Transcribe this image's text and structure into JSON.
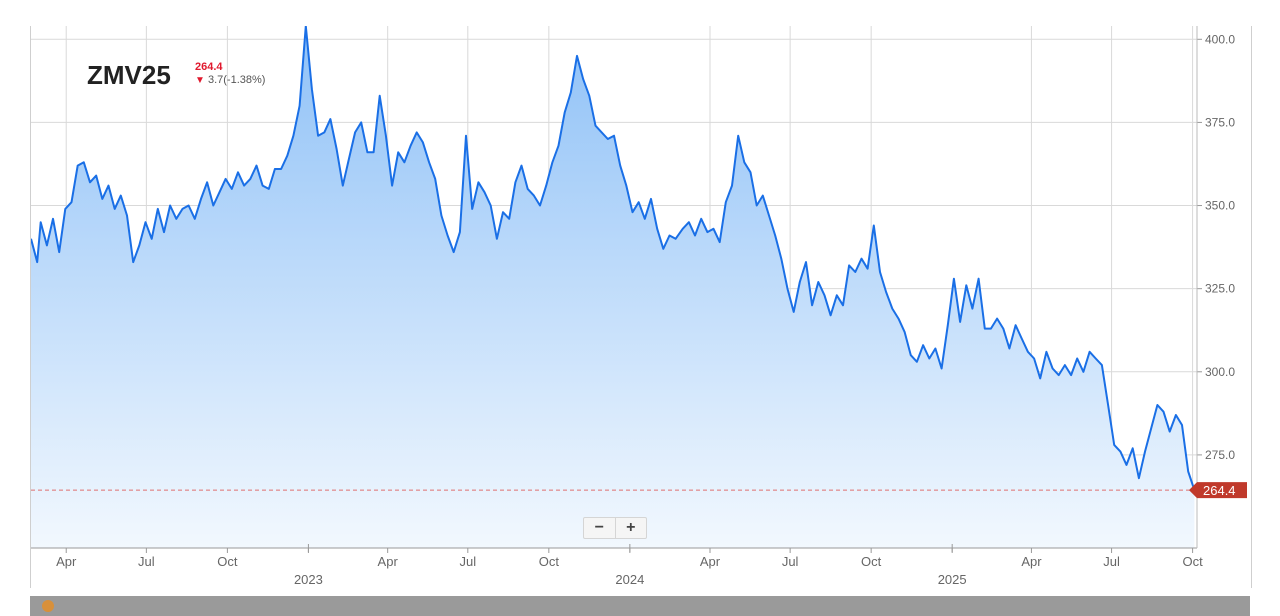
{
  "header": {
    "symbol": "ZMV25",
    "last": "264.4",
    "change": "3.7(-1.38%)",
    "direction_icon": "down-arrow-icon"
  },
  "zoom": {
    "minus": "−",
    "plus": "+"
  },
  "chart_data": {
    "type": "area",
    "title": "ZMV25",
    "xlabel": "",
    "ylabel": "",
    "last_value": 264.4,
    "last_value_label": "264.4",
    "ylim": [
      247,
      404
    ],
    "xlim": [
      "2022-02-20",
      "2025-10-06"
    ],
    "y_ticks": [
      400.0,
      375.0,
      350.0,
      325.0,
      300.0,
      275.0
    ],
    "y_tick_labels": [
      "400.0",
      "375.0",
      "350.0",
      "325.0",
      "300.0",
      "275.0"
    ],
    "x_ticks": [
      {
        "date": "2022-04-01",
        "label": "Apr"
      },
      {
        "date": "2022-07-01",
        "label": "Jul"
      },
      {
        "date": "2022-10-01",
        "label": "Oct"
      },
      {
        "date": "2023-01-01",
        "label": "2023",
        "year": true
      },
      {
        "date": "2023-04-01",
        "label": "Apr"
      },
      {
        "date": "2023-07-01",
        "label": "Jul"
      },
      {
        "date": "2023-10-01",
        "label": "Oct"
      },
      {
        "date": "2024-01-01",
        "label": "2024",
        "year": true
      },
      {
        "date": "2024-04-01",
        "label": "Apr"
      },
      {
        "date": "2024-07-01",
        "label": "Jul"
      },
      {
        "date": "2024-10-01",
        "label": "Oct"
      },
      {
        "date": "2025-01-01",
        "label": "2025",
        "year": true
      },
      {
        "date": "2025-04-01",
        "label": "Apr"
      },
      {
        "date": "2025-07-01",
        "label": "Jul"
      },
      {
        "date": "2025-10-01",
        "label": "Oct"
      }
    ],
    "grid": true,
    "colors": {
      "line": "#1a6fe6",
      "fill_top": "#8fc1f7",
      "fill_bottom": "#f2f8fe",
      "last_marker": "#c0392b",
      "last_line": "#e07070",
      "grid": "#d9d9d9"
    },
    "series": [
      {
        "points": [
          [
            "2022-02-20",
            340
          ],
          [
            "2022-02-27",
            333
          ],
          [
            "2022-03-03",
            345
          ],
          [
            "2022-03-10",
            338
          ],
          [
            "2022-03-17",
            346
          ],
          [
            "2022-03-24",
            336
          ],
          [
            "2022-03-31",
            349
          ],
          [
            "2022-04-07",
            351
          ],
          [
            "2022-04-14",
            362
          ],
          [
            "2022-04-21",
            363
          ],
          [
            "2022-04-28",
            357
          ],
          [
            "2022-05-05",
            359
          ],
          [
            "2022-05-12",
            352
          ],
          [
            "2022-05-19",
            356
          ],
          [
            "2022-05-26",
            349
          ],
          [
            "2022-06-02",
            353
          ],
          [
            "2022-06-09",
            347
          ],
          [
            "2022-06-16",
            333
          ],
          [
            "2022-06-23",
            338
          ],
          [
            "2022-06-30",
            345
          ],
          [
            "2022-07-07",
            340
          ],
          [
            "2022-07-14",
            349
          ],
          [
            "2022-07-21",
            342
          ],
          [
            "2022-07-28",
            350
          ],
          [
            "2022-08-04",
            346
          ],
          [
            "2022-08-11",
            349
          ],
          [
            "2022-08-18",
            350
          ],
          [
            "2022-08-25",
            346
          ],
          [
            "2022-09-01",
            352
          ],
          [
            "2022-09-08",
            357
          ],
          [
            "2022-09-15",
            350
          ],
          [
            "2022-09-22",
            354
          ],
          [
            "2022-09-29",
            358
          ],
          [
            "2022-10-06",
            355
          ],
          [
            "2022-10-13",
            360
          ],
          [
            "2022-10-20",
            356
          ],
          [
            "2022-10-27",
            358
          ],
          [
            "2022-11-03",
            362
          ],
          [
            "2022-11-10",
            356
          ],
          [
            "2022-11-17",
            355
          ],
          [
            "2022-11-24",
            361
          ],
          [
            "2022-12-01",
            361
          ],
          [
            "2022-12-08",
            365
          ],
          [
            "2022-12-15",
            371
          ],
          [
            "2022-12-22",
            380
          ],
          [
            "2022-12-29",
            404
          ],
          [
            "2023-01-05",
            385
          ],
          [
            "2023-01-12",
            371
          ],
          [
            "2023-01-19",
            372
          ],
          [
            "2023-01-26",
            376
          ],
          [
            "2023-02-02",
            367
          ],
          [
            "2023-02-09",
            356
          ],
          [
            "2023-02-16",
            364
          ],
          [
            "2023-02-23",
            372
          ],
          [
            "2023-03-02",
            375
          ],
          [
            "2023-03-09",
            366
          ],
          [
            "2023-03-16",
            366
          ],
          [
            "2023-03-23",
            383
          ],
          [
            "2023-03-30",
            371
          ],
          [
            "2023-04-06",
            356
          ],
          [
            "2023-04-13",
            366
          ],
          [
            "2023-04-20",
            363
          ],
          [
            "2023-04-27",
            368
          ],
          [
            "2023-05-04",
            372
          ],
          [
            "2023-05-11",
            369
          ],
          [
            "2023-05-18",
            363
          ],
          [
            "2023-05-25",
            358
          ],
          [
            "2023-06-01",
            347
          ],
          [
            "2023-06-08",
            341
          ],
          [
            "2023-06-15",
            336
          ],
          [
            "2023-06-22",
            342
          ],
          [
            "2023-06-29",
            371
          ],
          [
            "2023-07-06",
            349
          ],
          [
            "2023-07-13",
            357
          ],
          [
            "2023-07-20",
            354
          ],
          [
            "2023-07-27",
            350
          ],
          [
            "2023-08-03",
            340
          ],
          [
            "2023-08-10",
            348
          ],
          [
            "2023-08-17",
            346
          ],
          [
            "2023-08-24",
            357
          ],
          [
            "2023-08-31",
            362
          ],
          [
            "2023-09-07",
            355
          ],
          [
            "2023-09-14",
            353
          ],
          [
            "2023-09-21",
            350
          ],
          [
            "2023-09-28",
            356
          ],
          [
            "2023-10-05",
            363
          ],
          [
            "2023-10-12",
            368
          ],
          [
            "2023-10-19",
            378
          ],
          [
            "2023-10-26",
            384
          ],
          [
            "2023-11-02",
            395
          ],
          [
            "2023-11-09",
            388
          ],
          [
            "2023-11-16",
            383
          ],
          [
            "2023-11-23",
            374
          ],
          [
            "2023-11-30",
            372
          ],
          [
            "2023-12-07",
            370
          ],
          [
            "2023-12-14",
            371
          ],
          [
            "2023-12-21",
            362
          ],
          [
            "2023-12-28",
            356
          ],
          [
            "2024-01-04",
            348
          ],
          [
            "2024-01-11",
            351
          ],
          [
            "2024-01-18",
            346
          ],
          [
            "2024-01-25",
            352
          ],
          [
            "2024-02-01",
            343
          ],
          [
            "2024-02-08",
            337
          ],
          [
            "2024-02-15",
            341
          ],
          [
            "2024-02-22",
            340
          ],
          [
            "2024-03-01",
            343
          ],
          [
            "2024-03-08",
            345
          ],
          [
            "2024-03-15",
            341
          ],
          [
            "2024-03-22",
            346
          ],
          [
            "2024-03-29",
            342
          ],
          [
            "2024-04-05",
            343
          ],
          [
            "2024-04-12",
            339
          ],
          [
            "2024-04-19",
            351
          ],
          [
            "2024-04-26",
            356
          ],
          [
            "2024-05-03",
            371
          ],
          [
            "2024-05-10",
            363
          ],
          [
            "2024-05-17",
            360
          ],
          [
            "2024-05-24",
            350
          ],
          [
            "2024-05-31",
            353
          ],
          [
            "2024-06-07",
            347
          ],
          [
            "2024-06-14",
            341
          ],
          [
            "2024-06-21",
            334
          ],
          [
            "2024-06-28",
            325
          ],
          [
            "2024-07-05",
            318
          ],
          [
            "2024-07-12",
            327
          ],
          [
            "2024-07-19",
            333
          ],
          [
            "2024-07-26",
            320
          ],
          [
            "2024-08-02",
            327
          ],
          [
            "2024-08-09",
            323
          ],
          [
            "2024-08-16",
            317
          ],
          [
            "2024-08-23",
            323
          ],
          [
            "2024-08-30",
            320
          ],
          [
            "2024-09-06",
            332
          ],
          [
            "2024-09-13",
            330
          ],
          [
            "2024-09-20",
            334
          ],
          [
            "2024-09-27",
            331
          ],
          [
            "2024-10-04",
            344
          ],
          [
            "2024-10-11",
            330
          ],
          [
            "2024-10-18",
            324
          ],
          [
            "2024-10-25",
            319
          ],
          [
            "2024-11-01",
            316
          ],
          [
            "2024-11-08",
            312
          ],
          [
            "2024-11-15",
            305
          ],
          [
            "2024-11-22",
            303
          ],
          [
            "2024-11-29",
            308
          ],
          [
            "2024-12-06",
            304
          ],
          [
            "2024-12-13",
            307
          ],
          [
            "2024-12-20",
            301
          ],
          [
            "2024-12-27",
            314
          ],
          [
            "2025-01-03",
            328
          ],
          [
            "2025-01-10",
            315
          ],
          [
            "2025-01-17",
            326
          ],
          [
            "2025-01-24",
            319
          ],
          [
            "2025-01-31",
            328
          ],
          [
            "2025-02-07",
            313
          ],
          [
            "2025-02-14",
            313
          ],
          [
            "2025-02-21",
            316
          ],
          [
            "2025-02-28",
            313
          ],
          [
            "2025-03-07",
            307
          ],
          [
            "2025-03-14",
            314
          ],
          [
            "2025-03-21",
            310
          ],
          [
            "2025-03-28",
            306
          ],
          [
            "2025-04-04",
            304
          ],
          [
            "2025-04-11",
            298
          ],
          [
            "2025-04-18",
            306
          ],
          [
            "2025-04-25",
            301
          ],
          [
            "2025-05-02",
            299
          ],
          [
            "2025-05-09",
            302
          ],
          [
            "2025-05-16",
            299
          ],
          [
            "2025-05-23",
            304
          ],
          [
            "2025-05-30",
            300
          ],
          [
            "2025-06-06",
            306
          ],
          [
            "2025-06-13",
            304
          ],
          [
            "2025-06-20",
            302
          ],
          [
            "2025-06-27",
            290
          ],
          [
            "2025-07-04",
            278
          ],
          [
            "2025-07-11",
            276
          ],
          [
            "2025-07-18",
            272
          ],
          [
            "2025-07-25",
            277
          ],
          [
            "2025-08-01",
            268
          ],
          [
            "2025-08-08",
            276
          ],
          [
            "2025-08-15",
            283
          ],
          [
            "2025-08-22",
            290
          ],
          [
            "2025-08-29",
            288
          ],
          [
            "2025-09-05",
            282
          ],
          [
            "2025-09-12",
            287
          ],
          [
            "2025-09-19",
            284
          ],
          [
            "2025-09-26",
            270
          ],
          [
            "2025-10-03",
            264.4
          ]
        ]
      }
    ]
  }
}
